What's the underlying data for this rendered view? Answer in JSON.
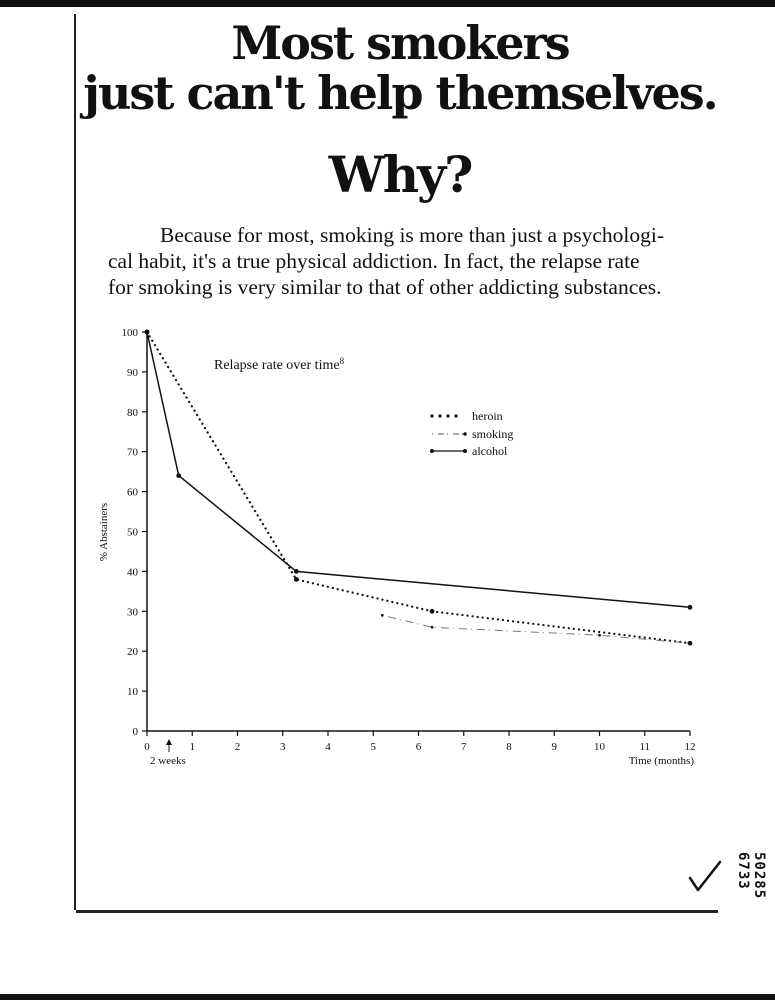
{
  "headline": {
    "line1": "Most smokers",
    "line2": "just can't help themselves."
  },
  "why": "Why?",
  "body": {
    "line1": "Because for most, smoking is more than just a psychologi-",
    "line2": "cal habit, it's a true physical addiction. In fact, the relapse rate",
    "line3": "for smoking is very similar to that of other addicting substances."
  },
  "chart_data": {
    "type": "line",
    "title": "Relapse rate over time",
    "title_footnote": "8",
    "xlabel": "Time (months)",
    "ylabel": "% Abstainers",
    "xlim": [
      0,
      12
    ],
    "ylim": [
      0,
      100
    ],
    "x_ticks": [
      "0",
      "1",
      "2",
      "3",
      "4",
      "5",
      "6",
      "7",
      "8",
      "9",
      "10",
      "11",
      "12"
    ],
    "y_ticks": [
      "0",
      "10",
      "20",
      "30",
      "40",
      "50",
      "60",
      "70",
      "80",
      "90",
      "100"
    ],
    "annotation": "2 weeks",
    "annotation_x": 0.5,
    "grid": false,
    "legend_position": "top-right",
    "series": [
      {
        "name": "heroin",
        "style": "dotted",
        "x": [
          0,
          3.3,
          6.3,
          12
        ],
        "y": [
          100,
          38,
          30,
          22
        ]
      },
      {
        "name": "smoking",
        "style": "dash-dot",
        "x": [
          5.2,
          6.3,
          10,
          12
        ],
        "y": [
          29,
          26,
          24,
          22
        ]
      },
      {
        "name": "alcohol",
        "style": "solid",
        "x": [
          0,
          0.7,
          3.3,
          12
        ],
        "y": [
          100,
          64,
          40,
          31
        ]
      }
    ]
  },
  "doc_number": "50285 6733"
}
